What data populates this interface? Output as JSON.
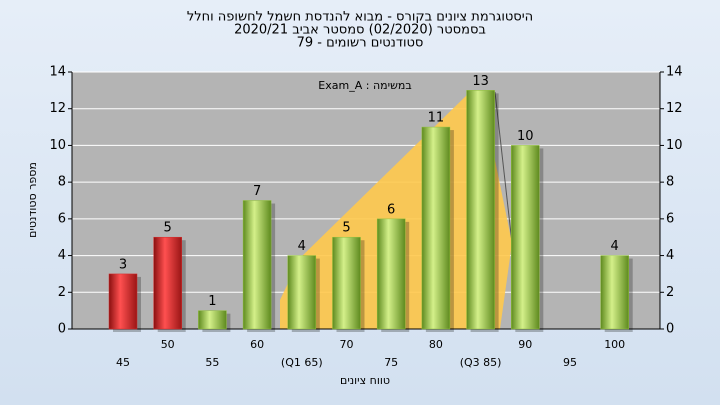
{
  "chart_data": {
    "type": "bar",
    "title": "היסטוגרמת ציונים בקורס - מבוא להנדסת חשמל לחשופה וחלל",
    "subtitle": "בסמסטר (02/2020) סמסטר אביב 2020/21",
    "subtitle2": "סטודנטים רשומים - 79",
    "annotation": "במשימה : Exam_A",
    "x_label": "טווח ציונים",
    "y_label": "מספר סטודנטים",
    "categories": [
      "45",
      "50",
      "55",
      "60",
      "(Q1 65)",
      "70",
      "75",
      "80",
      "(Q3 85)",
      "90",
      "95",
      "100"
    ],
    "values": [
      3,
      5,
      1,
      7,
      4,
      5,
      6,
      11,
      13,
      10,
      null,
      4
    ],
    "colors": [
      "#d42a2a",
      "#d42a2a",
      "#8fbf3a",
      "#8fbf3a",
      "#8fbf3a",
      "#8fbf3a",
      "#8fbf3a",
      "#8fbf3a",
      "#8fbf3a",
      "#8fbf3a",
      "#8fbf3a",
      "#8fbf3a"
    ],
    "ylim": [
      0,
      14
    ],
    "yticks": [
      0,
      2,
      4,
      6,
      8,
      10,
      12,
      14
    ],
    "y2lim": [
      0,
      14
    ],
    "y2ticks": [
      0,
      2,
      4,
      6,
      8,
      10,
      12,
      14
    ],
    "grid": true
  }
}
